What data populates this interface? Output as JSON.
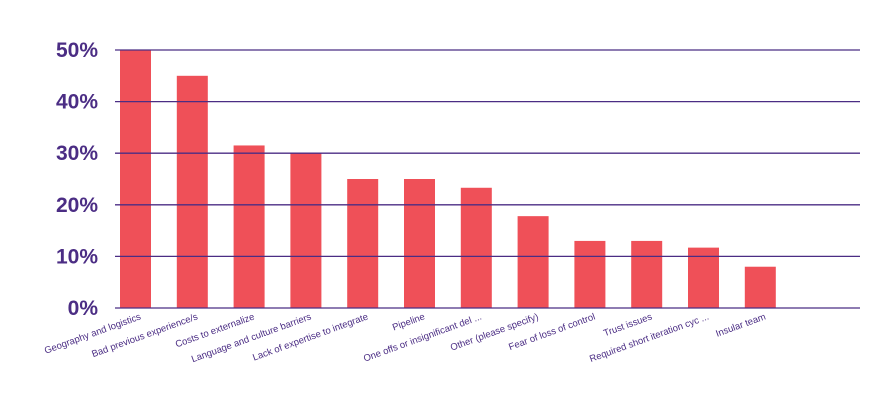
{
  "chart_data": {
    "type": "bar",
    "title": "",
    "xlabel": "",
    "ylabel": "",
    "ylim": [
      0,
      50
    ],
    "yticks": [
      0,
      10,
      20,
      30,
      40,
      50
    ],
    "ytick_labels": [
      "0%",
      "10%",
      "20%",
      "30%",
      "40%",
      "50%"
    ],
    "categories": [
      "Geography and logistics",
      "Bad previous experience/s",
      "Costs to externalize",
      "Language and culture barriers",
      "Lack of expertise to integrate",
      "Pipeline",
      "One offs or insignificant del ...",
      "Other (please specify)",
      "Fear of loss of control",
      "Trust issues",
      "Required short iteration cyc ...",
      "Insular team"
    ],
    "values": [
      50,
      45,
      31.5,
      30,
      25,
      25,
      23.3,
      17.8,
      13,
      13,
      11.7,
      8
    ],
    "grid": true,
    "colors": {
      "bar": "#ef5058",
      "grid": "#4b2d84",
      "tick_label": "#4b2d84"
    }
  }
}
